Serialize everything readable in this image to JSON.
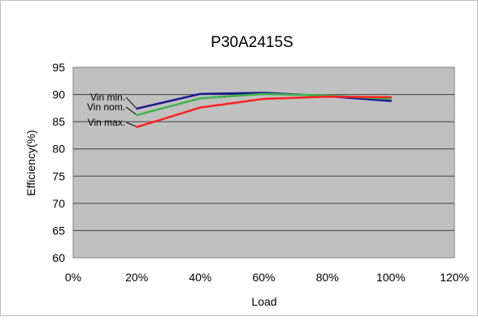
{
  "chart_data": {
    "type": "line",
    "title": "P30A2415S",
    "xlabel": "Load",
    "ylabel": "Efficiency(%)",
    "xlim": [
      0,
      120
    ],
    "ylim": [
      60,
      95
    ],
    "x_ticks": [
      "0%",
      "20%",
      "40%",
      "60%",
      "80%",
      "100%",
      "120%"
    ],
    "y_ticks": [
      "60",
      "65",
      "70",
      "75",
      "80",
      "85",
      "90",
      "95"
    ],
    "grid": "horizontal",
    "plot_background": "#c0c0c0",
    "series": [
      {
        "name": "Vin min.",
        "color": "#1a1a8c",
        "x": [
          20,
          40,
          60,
          80,
          100
        ],
        "y": [
          87.4,
          90.1,
          90.3,
          89.7,
          88.8
        ]
      },
      {
        "name": "Vin nom.",
        "color": "#3cb44b",
        "x": [
          20,
          40,
          60,
          80,
          100
        ],
        "y": [
          86.2,
          89.3,
          90.1,
          89.8,
          89.2
        ]
      },
      {
        "name": "Vin max.",
        "color": "#ff2020",
        "x": [
          20,
          40,
          60,
          80,
          100
        ],
        "y": [
          84.0,
          87.6,
          89.2,
          89.6,
          89.5
        ]
      }
    ]
  }
}
